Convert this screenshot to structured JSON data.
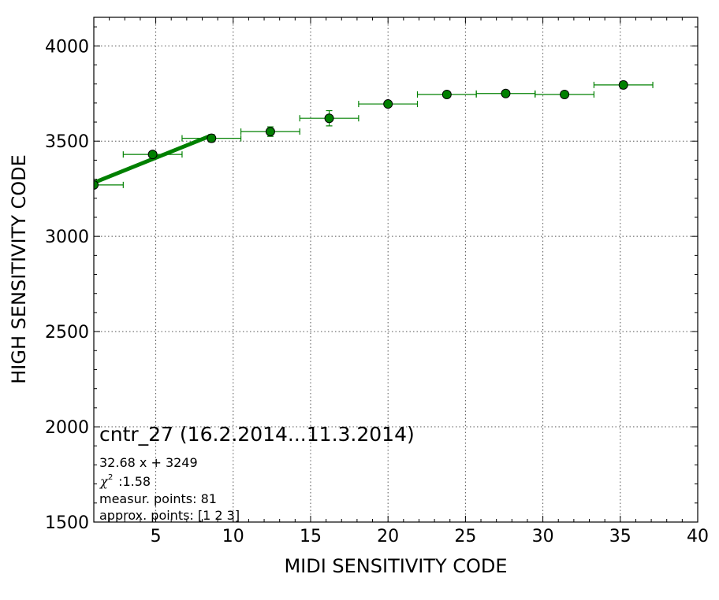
{
  "chart_data": {
    "type": "scatter",
    "xlabel": "MIDI SENSITIVITY CODE",
    "ylabel": "HIGH SENSITIVITY CODE",
    "xlim": [
      1,
      40
    ],
    "ylim": [
      1500,
      4150
    ],
    "x_ticks": [
      5,
      10,
      15,
      20,
      25,
      30,
      35,
      40
    ],
    "y_ticks": [
      1500,
      2000,
      2500,
      3000,
      3500,
      4000
    ],
    "grid": true,
    "colors": {
      "points": "#008000",
      "fit": "#008000",
      "errorbar": "#008000"
    },
    "series": [
      {
        "x": [
          1.0,
          4.8,
          8.6,
          12.4,
          16.2,
          20.0,
          23.8,
          27.6,
          31.4,
          35.2
        ],
        "y": [
          3270,
          3430,
          3515,
          3550,
          3620,
          3695,
          3745,
          3750,
          3745,
          3795
        ],
        "xerr": [
          1.9,
          1.9,
          1.9,
          1.9,
          1.9,
          1.9,
          1.9,
          1.9,
          1.9,
          1.9
        ],
        "yerr": [
          0,
          15,
          20,
          25,
          40,
          10,
          10,
          10,
          10,
          10
        ]
      }
    ],
    "fit": {
      "slope": 32.68,
      "intercept": 3249,
      "x_range": [
        1.0,
        8.6
      ]
    },
    "annotation": {
      "title": "cntr_27 (16.2.2014...11.3.2014)",
      "equation": "32.68 x + 3249",
      "chi_symbol": "χ",
      "chi_sup": "2",
      "chi_value": " :1.58",
      "measur_points": "measur. points: 81",
      "approx_points": "approx. points: [1 2 3]"
    }
  }
}
